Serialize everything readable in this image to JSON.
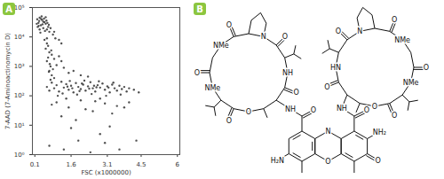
{
  "chart_data": {
    "type": "scatter",
    "title": "A",
    "x_label": "FSC (x1000000)",
    "y_label": "7-AAD (7-Aminoactinomycin D)",
    "log": "y",
    "color": "#333333",
    "marker": "dot",
    "xlim": [
      0,
      6.1
    ],
    "ylim": [
      1,
      100000
    ],
    "xticks": [
      0.1,
      1.6,
      3.1,
      4.5,
      6
    ],
    "yticks": [
      {
        "value": 1,
        "label": "10⁰"
      },
      {
        "value": 10,
        "label": "10¹"
      },
      {
        "value": 100,
        "label": "10²"
      },
      {
        "value": 1000,
        "label": "10³"
      },
      {
        "value": 10000,
        "label": "10⁴"
      },
      {
        "value": 100000,
        "label": "10⁵"
      }
    ],
    "x": [
      0.2,
      0.25,
      0.3,
      0.35,
      0.4,
      0.45,
      0.5,
      0.55,
      0.6,
      0.3,
      0.22,
      0.38,
      0.48,
      0.58,
      0.65,
      0.7,
      0.28,
      0.42,
      0.52,
      0.33,
      0.62,
      0.18,
      0.45,
      0.36,
      0.26,
      0.55,
      0.75,
      0.68,
      0.85,
      0.95,
      1.1,
      0.9,
      1.2,
      0.5,
      0.6,
      0.55,
      0.7,
      0.65,
      0.6,
      0.75,
      0.7,
      0.8,
      0.65,
      0.8,
      0.72,
      0.85,
      0.9,
      0.6,
      0.78,
      0.68,
      0.9,
      1.0,
      1.1,
      1.3,
      1.5,
      1.2,
      1.7,
      2.0,
      2.3,
      0.6,
      0.7,
      0.8,
      0.9,
      1.0,
      1.1,
      1.2,
      1.3,
      1.4,
      1.5,
      1.6,
      1.7,
      1.8,
      1.9,
      2.0,
      2.1,
      2.2,
      2.3,
      2.4,
      2.5,
      2.6,
      2.7,
      2.8,
      2.9,
      3.0,
      3.1,
      3.2,
      3.3,
      3.4,
      3.5,
      3.6,
      3.7,
      3.8,
      3.9,
      4.0,
      4.2,
      4.4,
      1.25,
      1.55,
      1.85,
      2.15,
      2.45,
      2.75,
      3.05,
      3.35,
      3.65,
      0.75,
      1.05,
      1.65,
      2.05,
      2.55,
      3.15,
      2.35,
      1.45,
      1.95,
      2.65,
      1.0,
      1.5,
      2.0,
      2.5,
      3.0,
      3.5,
      1.2,
      1.8,
      2.2,
      2.8,
      3.3,
      4.0,
      0.8,
      1.4,
      2.6,
      3.8,
      0.7,
      1.3,
      1.9,
      2.4,
      3.0,
      3.6,
      4.3,
      2.8,
      1.6,
      3.2
    ],
    "values": [
      40000,
      30000,
      45000,
      25000,
      38000,
      20000,
      32000,
      28000,
      18000,
      18000,
      22000,
      50000,
      42000,
      36000,
      22000,
      15000,
      35000,
      27000,
      16000,
      14000,
      30000,
      28000,
      33000,
      41000,
      24000,
      47000,
      20000,
      26000,
      12000,
      9000,
      8000,
      15000,
      6000,
      8000,
      6000,
      4000,
      3000,
      2000,
      1500,
      1000,
      700,
      500,
      5000,
      2500,
      1200,
      800,
      400,
      9000,
      3500,
      650,
      1800,
      1100,
      2200,
      900,
      600,
      1500,
      700,
      500,
      450,
      200,
      150,
      280,
      180,
      230,
      140,
      300,
      190,
      250,
      160,
      220,
      130,
      270,
      200,
      170,
      240,
      150,
      210,
      290,
      180,
      140,
      230,
      190,
      260,
      160,
      210,
      130,
      240,
      180,
      150,
      220,
      170,
      200,
      140,
      180,
      160,
      130,
      120,
      320,
      110,
      330,
      115,
      310,
      100,
      280,
      110,
      350,
      100,
      180,
      260,
      220,
      190,
      175,
      205,
      145,
      195,
      60,
      40,
      70,
      30,
      55,
      45,
      20,
      15,
      35,
      80,
      25,
      60,
      50,
      80,
      65,
      40,
      2,
      1.5,
      3,
      1.2,
      2.5,
      1.5,
      3,
      5,
      8,
      9
    ]
  },
  "diagram": {
    "title": "B",
    "core": {
      "ring_n": "N",
      "ring_o": "O",
      "amino_right": "NH₂",
      "amino_left": "H₂N",
      "keto": "O",
      "amide_o": [
        "O",
        "O"
      ],
      "amide_nh": [
        "NH",
        "NH"
      ]
    },
    "rings": [
      {
        "nh": "NH",
        "pro_n": "N",
        "sar_n": "NMe",
        "meval_n": "NMe",
        "ester_o": "O",
        "carbonyl_o": [
          "O",
          "O",
          "O",
          "O",
          "O"
        ]
      },
      {
        "nh": "HN",
        "pro_n": "N",
        "sar_n": "NMe",
        "meval_n": "NMe",
        "ester_o": "O",
        "carbonyl_o": [
          "O",
          "O",
          "O",
          "O",
          "O"
        ]
      }
    ]
  }
}
